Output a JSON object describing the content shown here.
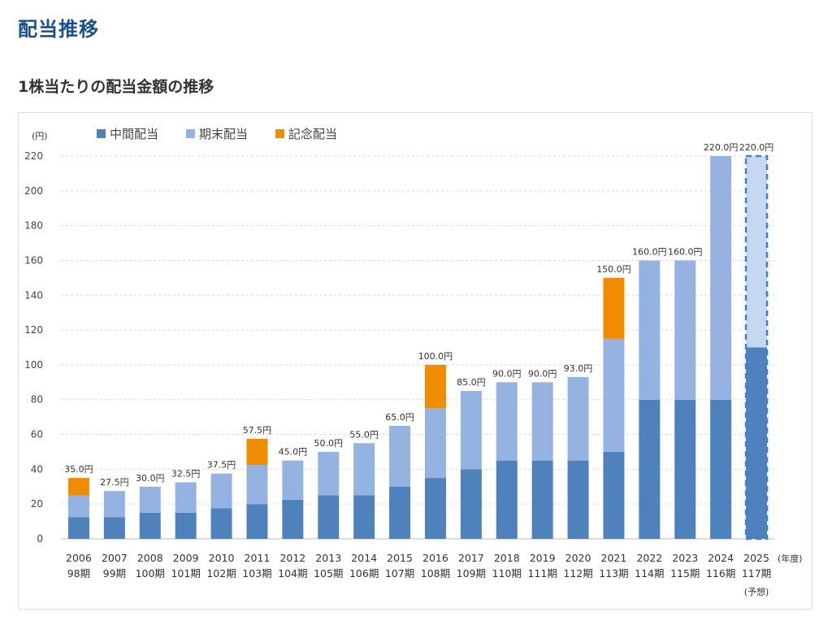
{
  "page": {
    "section_title": "配当推移",
    "subtitle": "1株当たりの配当金額の推移"
  },
  "chart_data": {
    "type": "bar",
    "stacked": true,
    "y_unit": "(円)",
    "x_unit": "(年度)",
    "ylim": [
      0,
      220
    ],
    "yticks": [
      0,
      20,
      40,
      60,
      80,
      100,
      120,
      140,
      160,
      180,
      200,
      220
    ],
    "grid": "horizontal-dashed",
    "legend_position": "top-left",
    "colors": {
      "interim": "#4f81bd",
      "year_end": "#95b3e0",
      "commemorative": "#f08c00",
      "forecast_interim": "#4f81bd",
      "forecast_year_end": "#c6d7f0",
      "forecast_border": "#3f7fd0"
    },
    "categories": [
      "2006",
      "2007",
      "2008",
      "2009",
      "2010",
      "2011",
      "2012",
      "2013",
      "2014",
      "2015",
      "2016",
      "2017",
      "2018",
      "2019",
      "2020",
      "2021",
      "2022",
      "2023",
      "2024",
      "2025"
    ],
    "periods": [
      "98期",
      "99期",
      "100期",
      "101期",
      "102期",
      "103期",
      "104期",
      "105期",
      "106期",
      "107期",
      "108期",
      "109期",
      "110期",
      "111期",
      "112期",
      "113期",
      "114期",
      "115期",
      "116期",
      "117期"
    ],
    "forecast_index": 19,
    "forecast_note": "(予想)",
    "series": [
      {
        "name": "中間配当",
        "key": "interim",
        "values": [
          12.5,
          12.5,
          15,
          15,
          17.5,
          20,
          22.5,
          25,
          25,
          30,
          35,
          40,
          45,
          45,
          45,
          50,
          80,
          80,
          80,
          110
        ]
      },
      {
        "name": "期末配当",
        "key": "year_end",
        "values": [
          12.5,
          15,
          15,
          17.5,
          20,
          22.5,
          22.5,
          25,
          30,
          35,
          40,
          45,
          45,
          45,
          48,
          65,
          80,
          80,
          140,
          110
        ]
      },
      {
        "name": "記念配当",
        "key": "commemorative",
        "values": [
          10,
          0,
          0,
          0,
          0,
          15,
          0,
          0,
          0,
          0,
          25,
          0,
          0,
          0,
          0,
          35,
          0,
          0,
          0,
          0
        ]
      }
    ],
    "data_labels": [
      "35.0円",
      "27.5円",
      "30.0円",
      "32.5円",
      "37.5円",
      "57.5円",
      "45.0円",
      "50.0円",
      "55.0円",
      "65.0円",
      "100.0円",
      "85.0円",
      "90.0円",
      "90.0円",
      "93.0円",
      "150.0円",
      "160.0円",
      "160.0円",
      "220.0円",
      "220.0円"
    ]
  }
}
